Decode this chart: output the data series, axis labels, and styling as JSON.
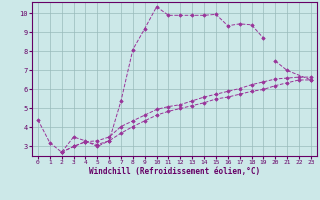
{
  "xlabel": "Windchill (Refroidissement éolien,°C)",
  "bg_color": "#cce8e8",
  "line_color": "#993399",
  "grid_color": "#99bbbb",
  "axis_color": "#660066",
  "xlim": [
    -0.5,
    23.5
  ],
  "ylim": [
    2.5,
    10.6
  ],
  "xticks": [
    0,
    1,
    2,
    3,
    4,
    5,
    6,
    7,
    8,
    9,
    10,
    11,
    12,
    13,
    14,
    15,
    16,
    17,
    18,
    19,
    20,
    21,
    22,
    23
  ],
  "yticks": [
    3,
    4,
    5,
    6,
    7,
    8,
    9,
    10
  ],
  "series": [
    {
      "x": [
        0,
        1,
        2,
        3,
        4,
        5,
        6,
        7,
        8,
        9,
        10,
        11,
        12,
        13,
        14,
        15,
        16,
        17,
        18,
        19
      ],
      "y": [
        4.4,
        3.2,
        2.7,
        3.5,
        3.3,
        3.0,
        3.3,
        5.4,
        8.1,
        9.2,
        10.35,
        9.9,
        9.9,
        9.9,
        9.9,
        9.95,
        9.35,
        9.45,
        9.4,
        8.7
      ]
    },
    {
      "x": [
        20,
        21,
        23
      ],
      "y": [
        7.5,
        7.0,
        6.5
      ]
    },
    {
      "x": [
        2,
        3,
        4,
        5,
        6,
        7,
        8,
        9,
        10,
        11,
        12,
        13,
        14,
        15,
        16,
        17,
        18,
        19,
        20,
        21,
        22,
        23
      ],
      "y": [
        2.7,
        3.0,
        3.25,
        3.1,
        3.3,
        3.7,
        4.05,
        4.35,
        4.65,
        4.85,
        5.0,
        5.15,
        5.3,
        5.5,
        5.6,
        5.75,
        5.9,
        6.0,
        6.2,
        6.35,
        6.5,
        6.5
      ]
    },
    {
      "x": [
        2,
        3,
        4,
        5,
        6,
        7,
        8,
        9,
        10,
        11,
        12,
        13,
        14,
        15,
        16,
        17,
        18,
        19,
        20,
        21,
        22,
        23
      ],
      "y": [
        2.7,
        3.0,
        3.25,
        3.3,
        3.5,
        4.05,
        4.35,
        4.65,
        4.95,
        5.1,
        5.2,
        5.4,
        5.6,
        5.75,
        5.9,
        6.05,
        6.25,
        6.4,
        6.55,
        6.6,
        6.65,
        6.65
      ]
    }
  ]
}
